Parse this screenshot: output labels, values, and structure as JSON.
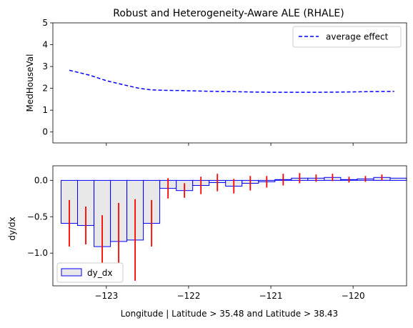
{
  "chart_data": [
    {
      "type": "line",
      "title": "Robust and Heterogeneity-Aware ALE (RHALE)",
      "xlabel": "",
      "ylabel": "MedHouseVal",
      "xlim": [
        -123.65,
        -119.35
      ],
      "ylim": [
        -0.5,
        5
      ],
      "yticks": [
        0,
        1,
        2,
        3,
        4,
        5
      ],
      "xticks": [
        -123,
        -122,
        -121,
        -120
      ],
      "show_xticklabels": false,
      "grid": false,
      "legend_position": "upper right",
      "series": [
        {
          "name": "average effect",
          "color": "#0000ff",
          "style": "dashed",
          "x": [
            -123.45,
            -123.2,
            -123.0,
            -122.8,
            -122.6,
            -122.45,
            -122.3,
            -122.1,
            -121.8,
            -121.5,
            -121.2,
            -121.0,
            -120.7,
            -120.4,
            -120.1,
            -119.8,
            -119.5
          ],
          "y": [
            2.83,
            2.6,
            2.35,
            2.17,
            2.0,
            1.93,
            1.91,
            1.9,
            1.87,
            1.85,
            1.83,
            1.82,
            1.82,
            1.82,
            1.83,
            1.85,
            1.86
          ]
        }
      ]
    },
    {
      "type": "bar",
      "title": "",
      "xlabel": "Longitude | Latitude > 35.48 and Latitude > 38.43",
      "ylabel": "dy/dx",
      "xlim": [
        -123.65,
        -119.35
      ],
      "ylim": [
        -1.45,
        0.2
      ],
      "yticks": [
        -1.0,
        -0.5,
        0.0
      ],
      "ytick_labels": [
        "−1.0",
        "−0.5",
        "0.0"
      ],
      "xticks": [
        -123,
        -122,
        -121,
        -120
      ],
      "xtick_labels": [
        "−123",
        "−122",
        "−121",
        "−120"
      ],
      "grid": false,
      "legend_position": "lower left",
      "series": [
        {
          "name": "dy_dx",
          "fill": "#e8e8e8",
          "edge": "#0000ff",
          "error_color": "#ff0000",
          "bars": [
            {
              "x0": -123.55,
              "x1": -123.35,
              "y": -0.59,
              "err": 0.32
            },
            {
              "x0": -123.35,
              "x1": -123.15,
              "y": -0.62,
              "err": 0.26
            },
            {
              "x0": -123.15,
              "x1": -122.95,
              "y": -0.91,
              "err": 0.43
            },
            {
              "x0": -122.95,
              "x1": -122.75,
              "y": -0.84,
              "err": 0.53
            },
            {
              "x0": -122.75,
              "x1": -122.55,
              "y": -0.82,
              "err": 0.56
            },
            {
              "x0": -122.55,
              "x1": -122.35,
              "y": -0.59,
              "err": 0.32
            },
            {
              "x0": -122.35,
              "x1": -122.15,
              "y": -0.11,
              "err": 0.14
            },
            {
              "x0": -122.15,
              "x1": -121.95,
              "y": -0.14,
              "err": 0.1
            },
            {
              "x0": -121.95,
              "x1": -121.75,
              "y": -0.07,
              "err": 0.12
            },
            {
              "x0": -121.75,
              "x1": -121.55,
              "y": -0.03,
              "err": 0.12
            },
            {
              "x0": -121.55,
              "x1": -121.35,
              "y": -0.08,
              "err": 0.1
            },
            {
              "x0": -121.35,
              "x1": -121.15,
              "y": -0.04,
              "err": 0.1
            },
            {
              "x0": -121.15,
              "x1": -120.95,
              "y": -0.02,
              "err": 0.08
            },
            {
              "x0": -120.95,
              "x1": -120.75,
              "y": 0.01,
              "err": 0.08
            },
            {
              "x0": -120.75,
              "x1": -120.55,
              "y": 0.03,
              "err": 0.07
            },
            {
              "x0": -120.55,
              "x1": -120.35,
              "y": 0.03,
              "err": 0.05
            },
            {
              "x0": -120.35,
              "x1": -120.15,
              "y": 0.04,
              "err": 0.05
            },
            {
              "x0": -120.15,
              "x1": -119.95,
              "y": 0.01,
              "err": 0.04
            },
            {
              "x0": -119.95,
              "x1": -119.75,
              "y": 0.02,
              "err": 0.04
            },
            {
              "x0": -119.75,
              "x1": -119.55,
              "y": 0.04,
              "err": 0.04
            },
            {
              "x0": -119.55,
              "x1": -119.35,
              "y": 0.03,
              "err": 0.0
            }
          ]
        }
      ]
    }
  ]
}
